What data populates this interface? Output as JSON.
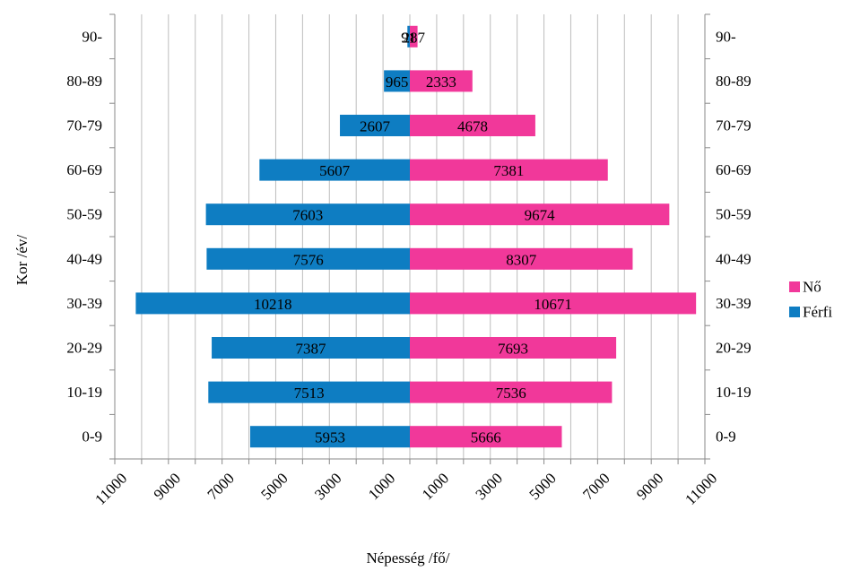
{
  "chart_data": {
    "type": "bar",
    "orientation": "horizontal",
    "layout": "population-pyramid",
    "categories": [
      "0-9",
      "10-19",
      "20-29",
      "30-39",
      "40-49",
      "50-59",
      "60-69",
      "70-79",
      "80-89",
      "90-"
    ],
    "series": [
      {
        "name": "Férfi",
        "color": "#0e7dc2",
        "side": "left",
        "values": [
          5953,
          7513,
          7387,
          10218,
          7576,
          7603,
          5607,
          2607,
          965,
          91
        ]
      },
      {
        "name": "Nő",
        "color": "#f1389a",
        "side": "right",
        "values": [
          5666,
          7536,
          7693,
          10671,
          8307,
          9674,
          7381,
          4678,
          2333,
          287
        ]
      }
    ],
    "xlabel": "Népesség /fő/",
    "ylabel": "Kor /év/",
    "x_tick_labels": [
      "11000",
      "9000",
      "7000",
      "5000",
      "3000",
      "1000",
      "1000",
      "3000",
      "5000",
      "7000",
      "9000",
      "11000"
    ],
    "x_range": [
      -11000,
      11000
    ],
    "grid": "vertical",
    "legend_position": "right",
    "legend_order": [
      "Nő",
      "Férfi"
    ]
  }
}
